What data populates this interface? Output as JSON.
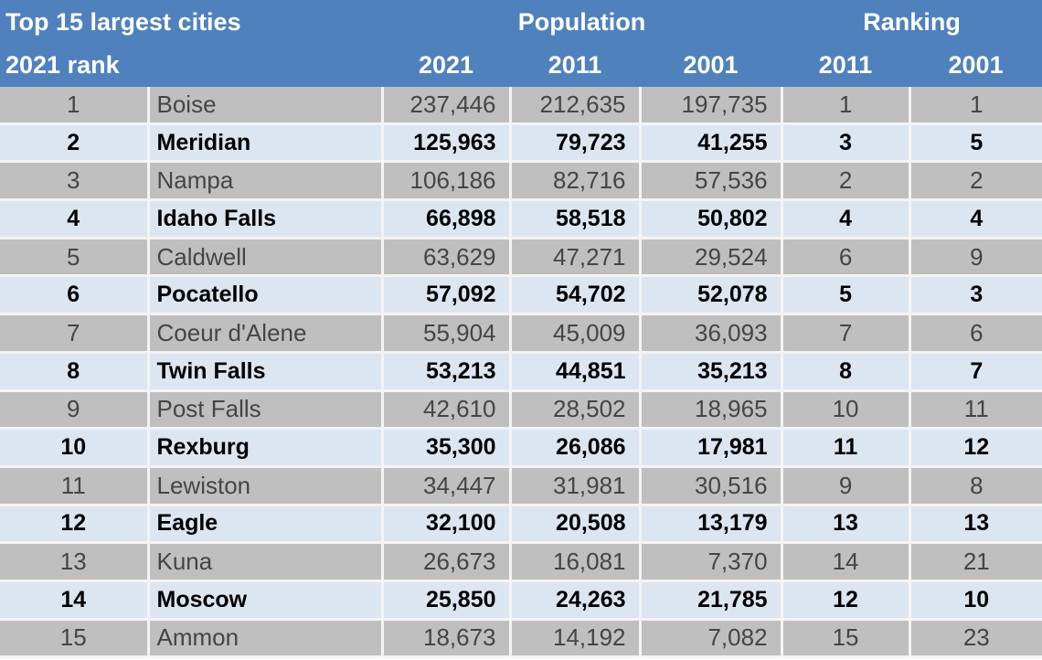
{
  "header": {
    "title": "Top 15 largest cities",
    "rank_label": "2021 rank",
    "population_group": "Population",
    "ranking_group": "Ranking",
    "pop_years": [
      "2021",
      "2011",
      "2001"
    ],
    "rank_years": [
      "2011",
      "2001"
    ]
  },
  "colors": {
    "header": "#4f81bd",
    "row_gray": "#bfbfbf",
    "row_light": "#dce6f1"
  },
  "rows": [
    {
      "rank": "1",
      "city": "Boise",
      "p2021": "237,446",
      "p2011": "212,635",
      "p2001": "197,735",
      "r2011": "1",
      "r2001": "1"
    },
    {
      "rank": "2",
      "city": "Meridian",
      "p2021": "125,963",
      "p2011": "79,723",
      "p2001": "41,255",
      "r2011": "3",
      "r2001": "5"
    },
    {
      "rank": "3",
      "city": "Nampa",
      "p2021": "106,186",
      "p2011": "82,716",
      "p2001": "57,536",
      "r2011": "2",
      "r2001": "2"
    },
    {
      "rank": "4",
      "city": "Idaho Falls",
      "p2021": "66,898",
      "p2011": "58,518",
      "p2001": "50,802",
      "r2011": "4",
      "r2001": "4"
    },
    {
      "rank": "5",
      "city": "Caldwell",
      "p2021": "63,629",
      "p2011": "47,271",
      "p2001": "29,524",
      "r2011": "6",
      "r2001": "9"
    },
    {
      "rank": "6",
      "city": "Pocatello",
      "p2021": "57,092",
      "p2011": "54,702",
      "p2001": "52,078",
      "r2011": "5",
      "r2001": "3"
    },
    {
      "rank": "7",
      "city": "Coeur d'Alene",
      "p2021": "55,904",
      "p2011": "45,009",
      "p2001": "36,093",
      "r2011": "7",
      "r2001": "6"
    },
    {
      "rank": "8",
      "city": "Twin Falls",
      "p2021": "53,213",
      "p2011": "44,851",
      "p2001": "35,213",
      "r2011": "8",
      "r2001": "7"
    },
    {
      "rank": "9",
      "city": "Post Falls",
      "p2021": "42,610",
      "p2011": "28,502",
      "p2001": "18,965",
      "r2011": "10",
      "r2001": "11"
    },
    {
      "rank": "10",
      "city": "Rexburg",
      "p2021": "35,300",
      "p2011": "26,086",
      "p2001": "17,981",
      "r2011": "11",
      "r2001": "12"
    },
    {
      "rank": "11",
      "city": "Lewiston",
      "p2021": "34,447",
      "p2011": "31,981",
      "p2001": "30,516",
      "r2011": "9",
      "r2001": "8"
    },
    {
      "rank": "12",
      "city": "Eagle",
      "p2021": "32,100",
      "p2011": "20,508",
      "p2001": "13,179",
      "r2011": "13",
      "r2001": "13"
    },
    {
      "rank": "13",
      "city": "Kuna",
      "p2021": "26,673",
      "p2011": "16,081",
      "p2001": "7,370",
      "r2011": "14",
      "r2001": "21"
    },
    {
      "rank": "14",
      "city": "Moscow",
      "p2021": "25,850",
      "p2011": "24,263",
      "p2001": "21,785",
      "r2011": "12",
      "r2001": "10"
    },
    {
      "rank": "15",
      "city": "Ammon",
      "p2021": "18,673",
      "p2011": "14,192",
      "p2001": "7,082",
      "r2011": "15",
      "r2001": "23"
    }
  ]
}
